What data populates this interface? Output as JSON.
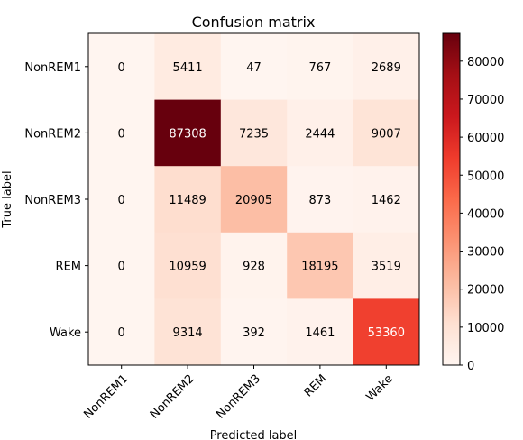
{
  "chart_data": {
    "type": "heatmap",
    "title": "Confusion matrix",
    "xlabel": "Predicted label",
    "ylabel": "True label",
    "x_categories": [
      "NonREM1",
      "NonREM2",
      "NonREM3",
      "REM",
      "Wake"
    ],
    "y_categories": [
      "NonREM1",
      "NonREM2",
      "NonREM3",
      "REM",
      "Wake"
    ],
    "values": [
      [
        0,
        5411,
        47,
        767,
        2689
      ],
      [
        0,
        87308,
        7235,
        2444,
        9007
      ],
      [
        0,
        11489,
        20905,
        873,
        1462
      ],
      [
        0,
        10959,
        928,
        18195,
        3519
      ],
      [
        0,
        9314,
        392,
        1461,
        53360
      ]
    ],
    "colormap": "Reds",
    "colorbar": {
      "range": [
        0,
        87308
      ],
      "ticks": [
        0,
        10000,
        20000,
        30000,
        40000,
        50000,
        60000,
        70000,
        80000
      ]
    }
  }
}
